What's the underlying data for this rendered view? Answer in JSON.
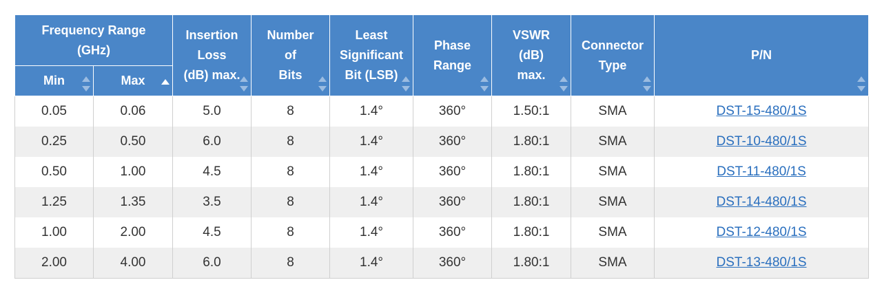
{
  "table": {
    "group_header": [
      "Frequency Range",
      "(GHz)"
    ],
    "columns": {
      "min": "Min",
      "max": "Max",
      "insertion_loss": [
        "Insertion",
        "Loss",
        "(dB) max."
      ],
      "bits": [
        "Number",
        "of",
        "Bits"
      ],
      "lsb": [
        "Least",
        "Significant",
        "Bit (LSB)"
      ],
      "phase": [
        "Phase",
        "Range"
      ],
      "vswr": [
        "VSWR",
        "(dB)",
        "max."
      ],
      "connector": [
        "Connector",
        "Type"
      ],
      "pn": "P/N"
    },
    "sort": {
      "column": "max",
      "direction": "ascending"
    },
    "rows": [
      {
        "min": "0.05",
        "max": "0.06",
        "il": "5.0",
        "bits": "8",
        "lsb": "1.4°",
        "phase": "360°",
        "vswr": "1.50:1",
        "conn": "SMA",
        "pn": "DST-15-480/1S"
      },
      {
        "min": "0.25",
        "max": "0.50",
        "il": "6.0",
        "bits": "8",
        "lsb": "1.4°",
        "phase": "360°",
        "vswr": "1.80:1",
        "conn": "SMA",
        "pn": "DST-10-480/1S"
      },
      {
        "min": "0.50",
        "max": "1.00",
        "il": "4.5",
        "bits": "8",
        "lsb": "1.4°",
        "phase": "360°",
        "vswr": "1.80:1",
        "conn": "SMA",
        "pn": "DST-11-480/1S"
      },
      {
        "min": "1.25",
        "max": "1.35",
        "il": "3.5",
        "bits": "8",
        "lsb": "1.4°",
        "phase": "360°",
        "vswr": "1.80:1",
        "conn": "SMA",
        "pn": "DST-14-480/1S"
      },
      {
        "min": "1.00",
        "max": "2.00",
        "il": "4.5",
        "bits": "8",
        "lsb": "1.4°",
        "phase": "360°",
        "vswr": "1.80:1",
        "conn": "SMA",
        "pn": "DST-12-480/1S"
      },
      {
        "min": "2.00",
        "max": "4.00",
        "il": "6.0",
        "bits": "8",
        "lsb": "1.4°",
        "phase": "360°",
        "vswr": "1.80:1",
        "conn": "SMA",
        "pn": "DST-13-480/1S"
      }
    ]
  },
  "colors": {
    "header_bg": "#4a86c8",
    "header_text": "#ffffff",
    "link": "#2a6fbe",
    "stripe": "#efefef"
  }
}
